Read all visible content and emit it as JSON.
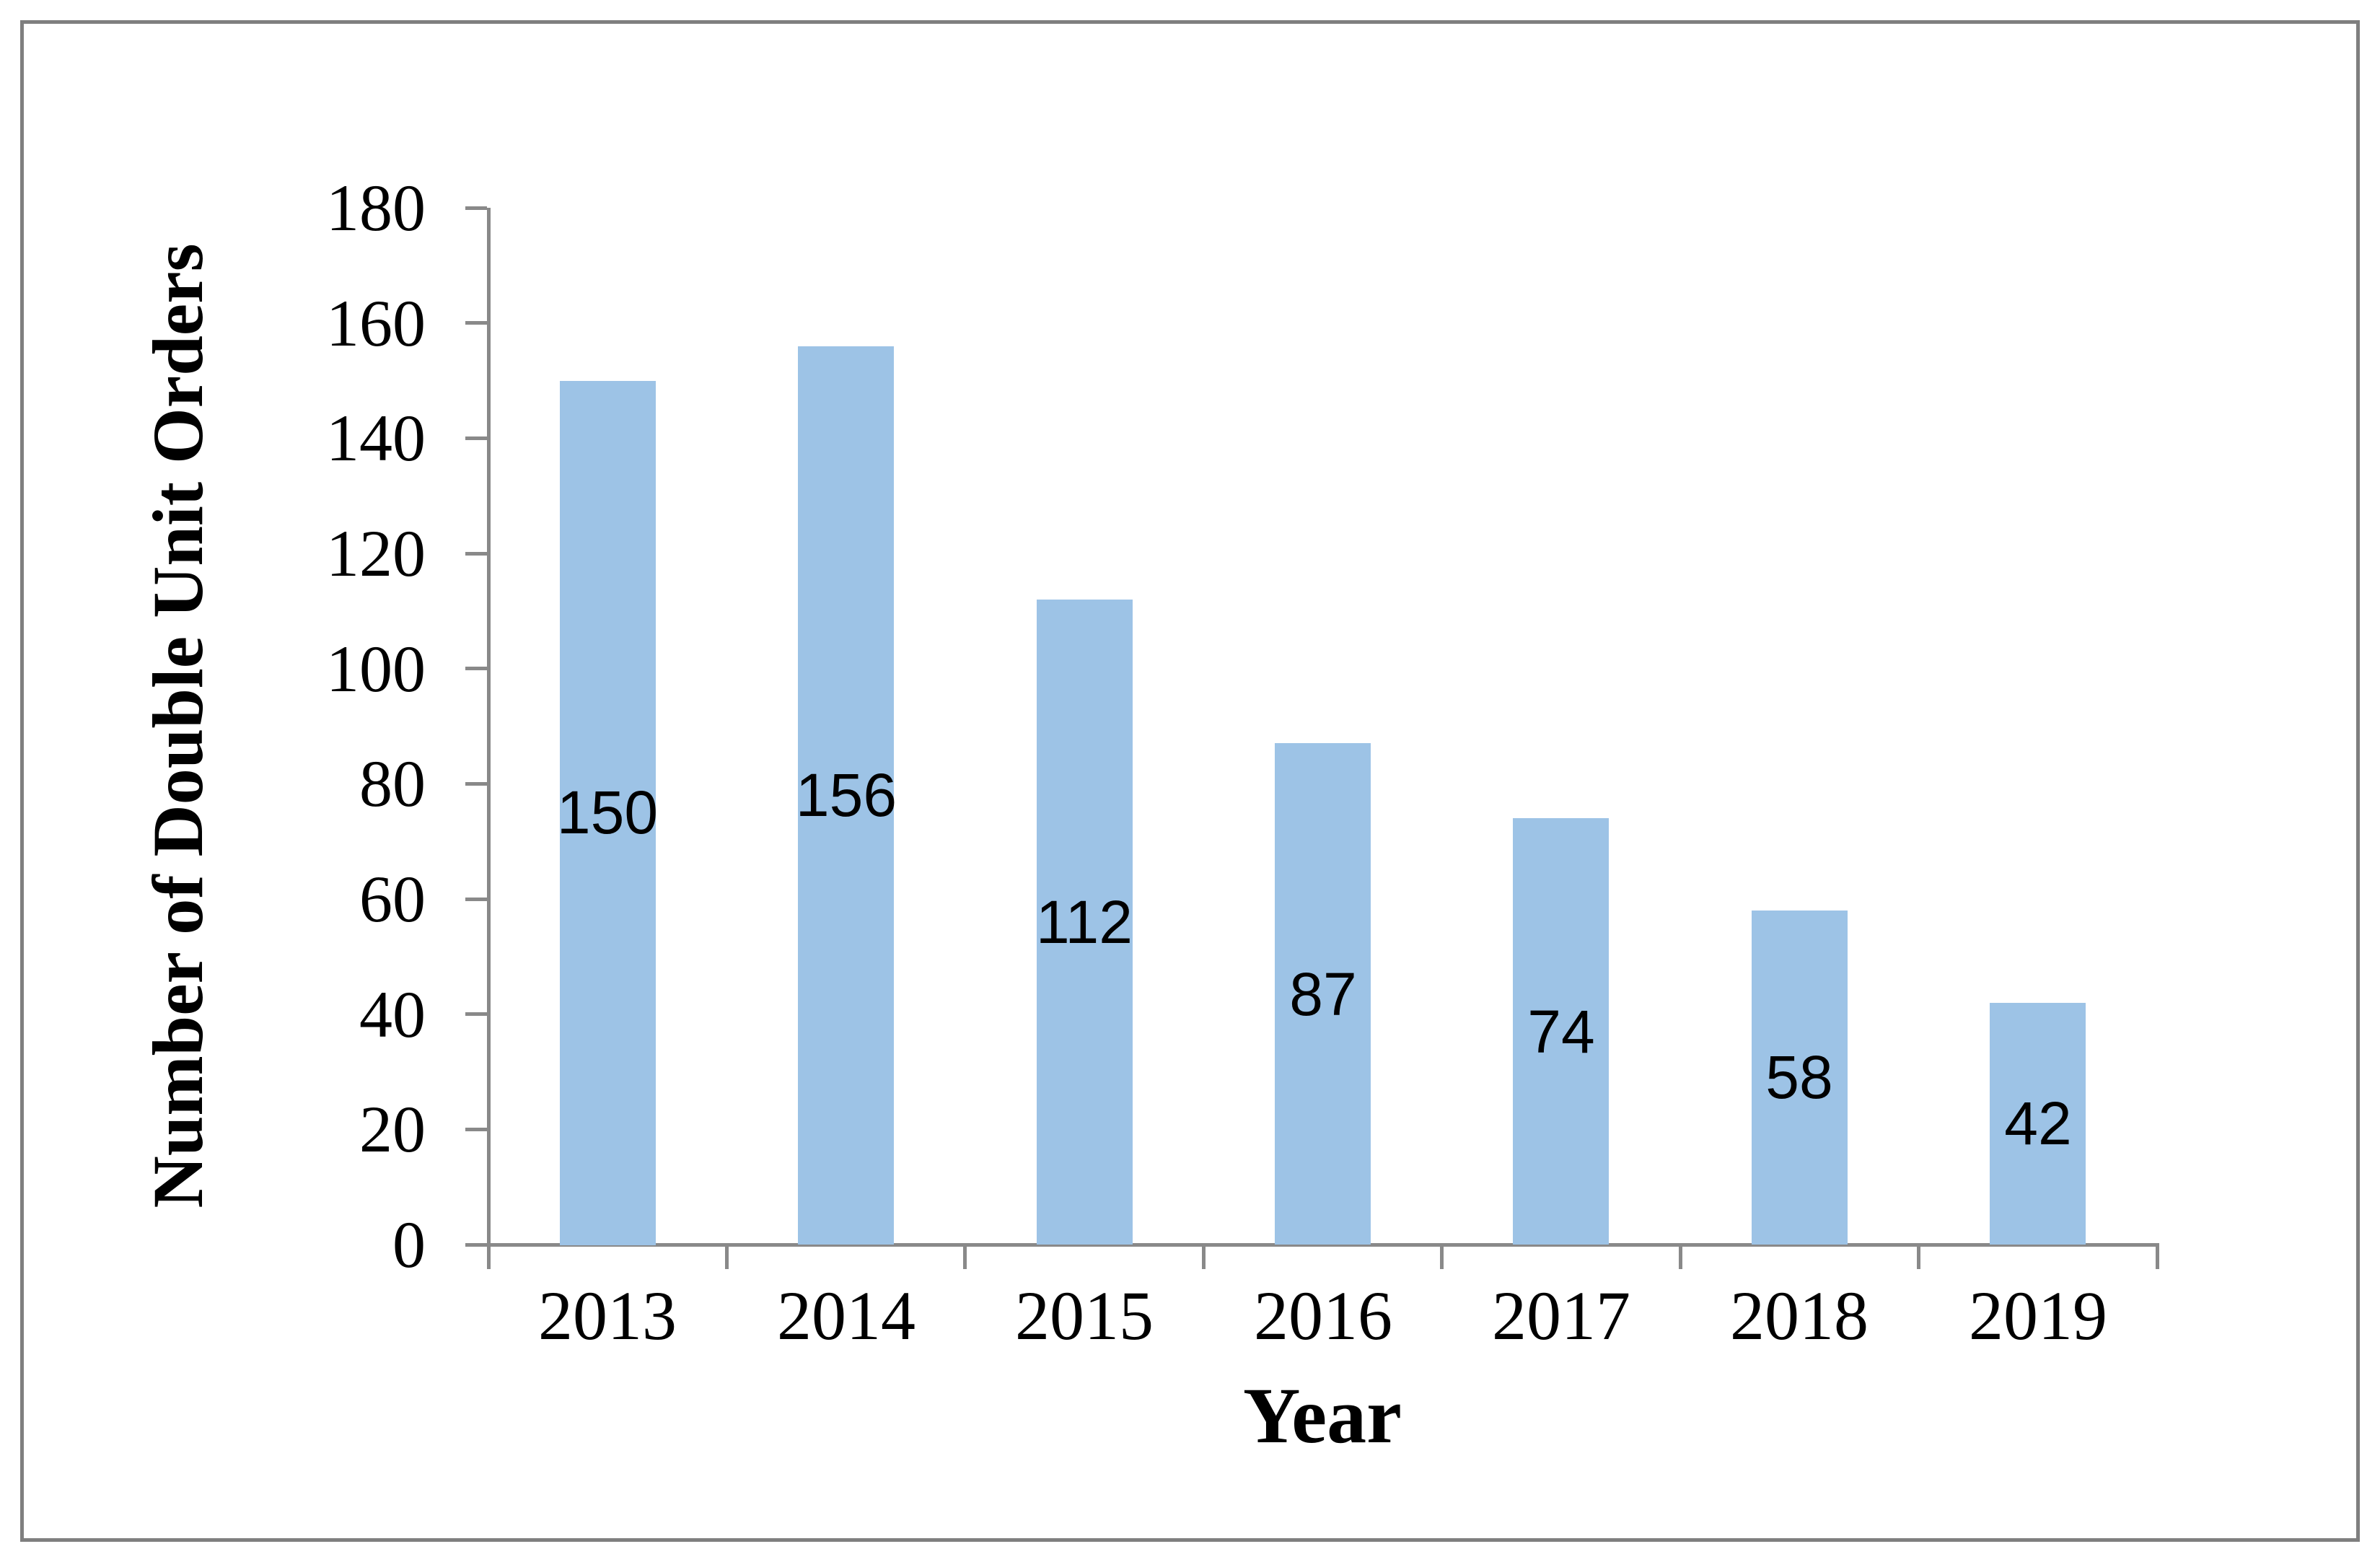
{
  "figure": {
    "background_color": "#ffffff",
    "frame_color": "#7f7f7f"
  },
  "chart_data": {
    "type": "bar",
    "title": "",
    "categories": [
      "2013",
      "2014",
      "2015",
      "2016",
      "2017",
      "2018",
      "2019"
    ],
    "values": [
      150,
      156,
      112,
      87,
      74,
      58,
      42
    ],
    "series": [
      {
        "name": "Number of Double Unit Orders",
        "values": [
          150,
          156,
          112,
          87,
          74,
          58,
          42
        ]
      }
    ],
    "xlabel": "Year",
    "ylabel": "Number of Double Unit Orders",
    "ylim": [
      0,
      180
    ],
    "yticks": [
      0,
      20,
      40,
      60,
      80,
      100,
      120,
      140,
      160,
      180
    ],
    "grid": false,
    "legend_position": "none",
    "data_label_position": "center",
    "bar_color": "#9dc3e6",
    "axis_color": "#898989",
    "text_color": "#000000"
  }
}
